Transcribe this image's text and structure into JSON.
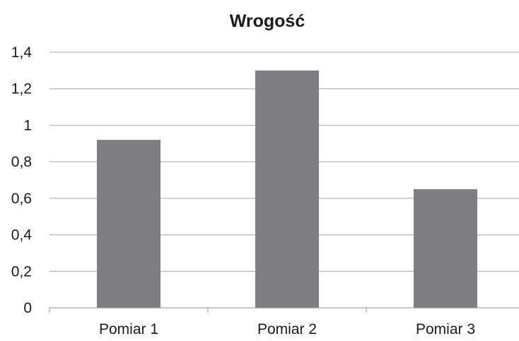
{
  "chart_data": {
    "type": "bar",
    "title": "Wrogość",
    "xlabel": "",
    "ylabel": "",
    "categories": [
      "Pomiar 1",
      "Pomiar 2",
      "Pomiar 3"
    ],
    "values": [
      0.92,
      1.3,
      0.65
    ],
    "ylim": [
      0,
      1.4
    ],
    "yticks": [
      "0",
      "0,2",
      "0,4",
      "0,6",
      "0,8",
      "1",
      "1,2",
      "1,4"
    ],
    "grid": true,
    "legend": "none",
    "bar_color": "#7f7f83"
  }
}
